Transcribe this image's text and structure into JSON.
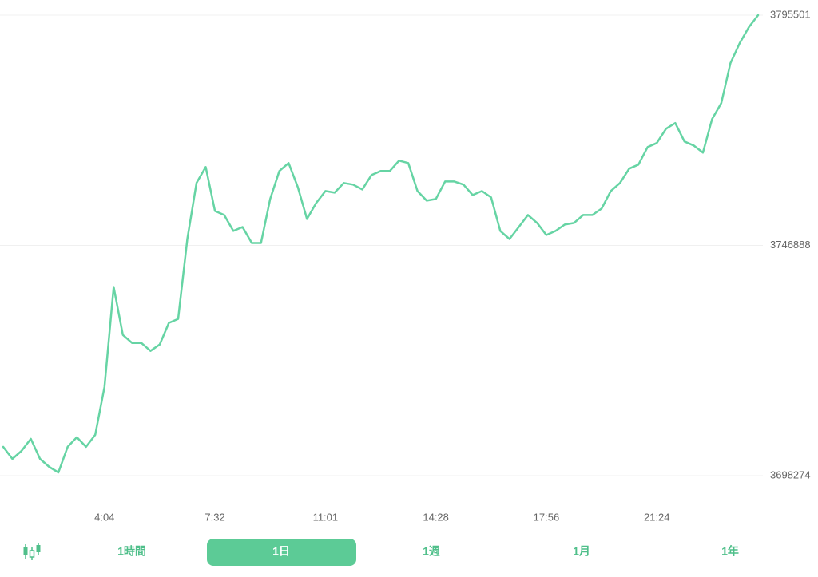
{
  "chart_data": {
    "type": "line",
    "color": "#66d4a4",
    "grid": true,
    "values": [
      3704350,
      3701820,
      3703510,
      3706040,
      3701820,
      3700130,
      3698950,
      3704350,
      3706380,
      3704350,
      3706880,
      3717010,
      3738110,
      3727980,
      3726300,
      3726300,
      3724610,
      3725960,
      3730520,
      3731360,
      3748240,
      3760060,
      3763430,
      3754150,
      3753300,
      3749930,
      3750770,
      3747400,
      3747400,
      3756680,
      3762590,
      3764280,
      3759210,
      3752460,
      3755840,
      3758370,
      3758030,
      3760060,
      3759720,
      3758700,
      3761740,
      3762590,
      3762590,
      3764780,
      3764280,
      3758370,
      3756340,
      3756680,
      3760390,
      3760390,
      3759720,
      3757520,
      3758370,
      3757020,
      3749930,
      3748240,
      3750770,
      3753300,
      3751620,
      3749080,
      3749930,
      3751280,
      3751620,
      3753300,
      3753300,
      3754650,
      3758370,
      3760060,
      3763090,
      3763940,
      3767650,
      3768500,
      3771530,
      3772720,
      3768830,
      3767990,
      3766470,
      3773560,
      3776940,
      3785380,
      3789600,
      3792970,
      3795500
    ],
    "ylim": [
      3698274,
      3795501
    ],
    "yticks": [
      3698274,
      3746888,
      3795501
    ],
    "xticks": [
      {
        "value": 11,
        "label": "4:04"
      },
      {
        "value": 23,
        "label": "7:32"
      },
      {
        "value": 35,
        "label": "11:01"
      },
      {
        "value": 47,
        "label": "14:28"
      },
      {
        "value": 59,
        "label": "17:56"
      },
      {
        "value": 71,
        "label": "21:24"
      }
    ]
  },
  "tabs": [
    "1時間",
    "1日",
    "1週",
    "1月",
    "1年"
  ],
  "active_tab": 1
}
